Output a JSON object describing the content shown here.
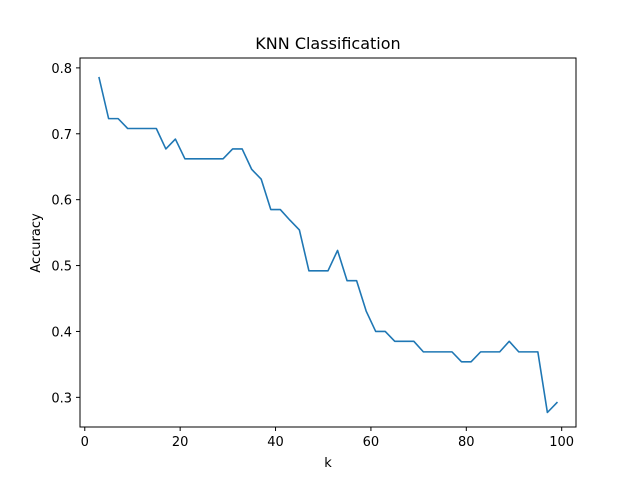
{
  "chart_data": {
    "type": "line",
    "title": "KNN Classification",
    "xlabel": "k",
    "ylabel": "Accuracy",
    "xlim": [
      -1,
      103
    ],
    "ylim": [
      0.255,
      0.815
    ],
    "xticks": [
      0,
      20,
      40,
      60,
      80,
      100
    ],
    "yticks": [
      0.3,
      0.4,
      0.5,
      0.6,
      0.7,
      0.8
    ],
    "xtick_labels": [
      "0",
      "20",
      "40",
      "60",
      "80",
      "100"
    ],
    "ytick_labels": [
      "0.3",
      "0.4",
      "0.5",
      "0.6",
      "0.7",
      "0.8"
    ],
    "grid": false,
    "series": [
      {
        "color": "#1f77b4",
        "x": [
          3,
          5,
          7,
          9,
          11,
          13,
          15,
          17,
          19,
          21,
          23,
          25,
          27,
          29,
          31,
          33,
          35,
          37,
          39,
          41,
          43,
          45,
          47,
          49,
          51,
          53,
          55,
          57,
          59,
          61,
          63,
          65,
          67,
          69,
          71,
          73,
          75,
          77,
          79,
          81,
          83,
          85,
          87,
          89,
          91,
          93,
          95,
          97,
          99
        ],
        "y": [
          0.785,
          0.723,
          0.723,
          0.708,
          0.708,
          0.708,
          0.708,
          0.677,
          0.692,
          0.662,
          0.662,
          0.662,
          0.662,
          0.662,
          0.677,
          0.677,
          0.646,
          0.631,
          0.585,
          0.585,
          0.569,
          0.554,
          0.492,
          0.492,
          0.492,
          0.523,
          0.477,
          0.477,
          0.431,
          0.4,
          0.4,
          0.385,
          0.385,
          0.385,
          0.369,
          0.369,
          0.369,
          0.369,
          0.354,
          0.354,
          0.369,
          0.369,
          0.369,
          0.385,
          0.369,
          0.369,
          0.369,
          0.277,
          0.292
        ]
      }
    ]
  }
}
